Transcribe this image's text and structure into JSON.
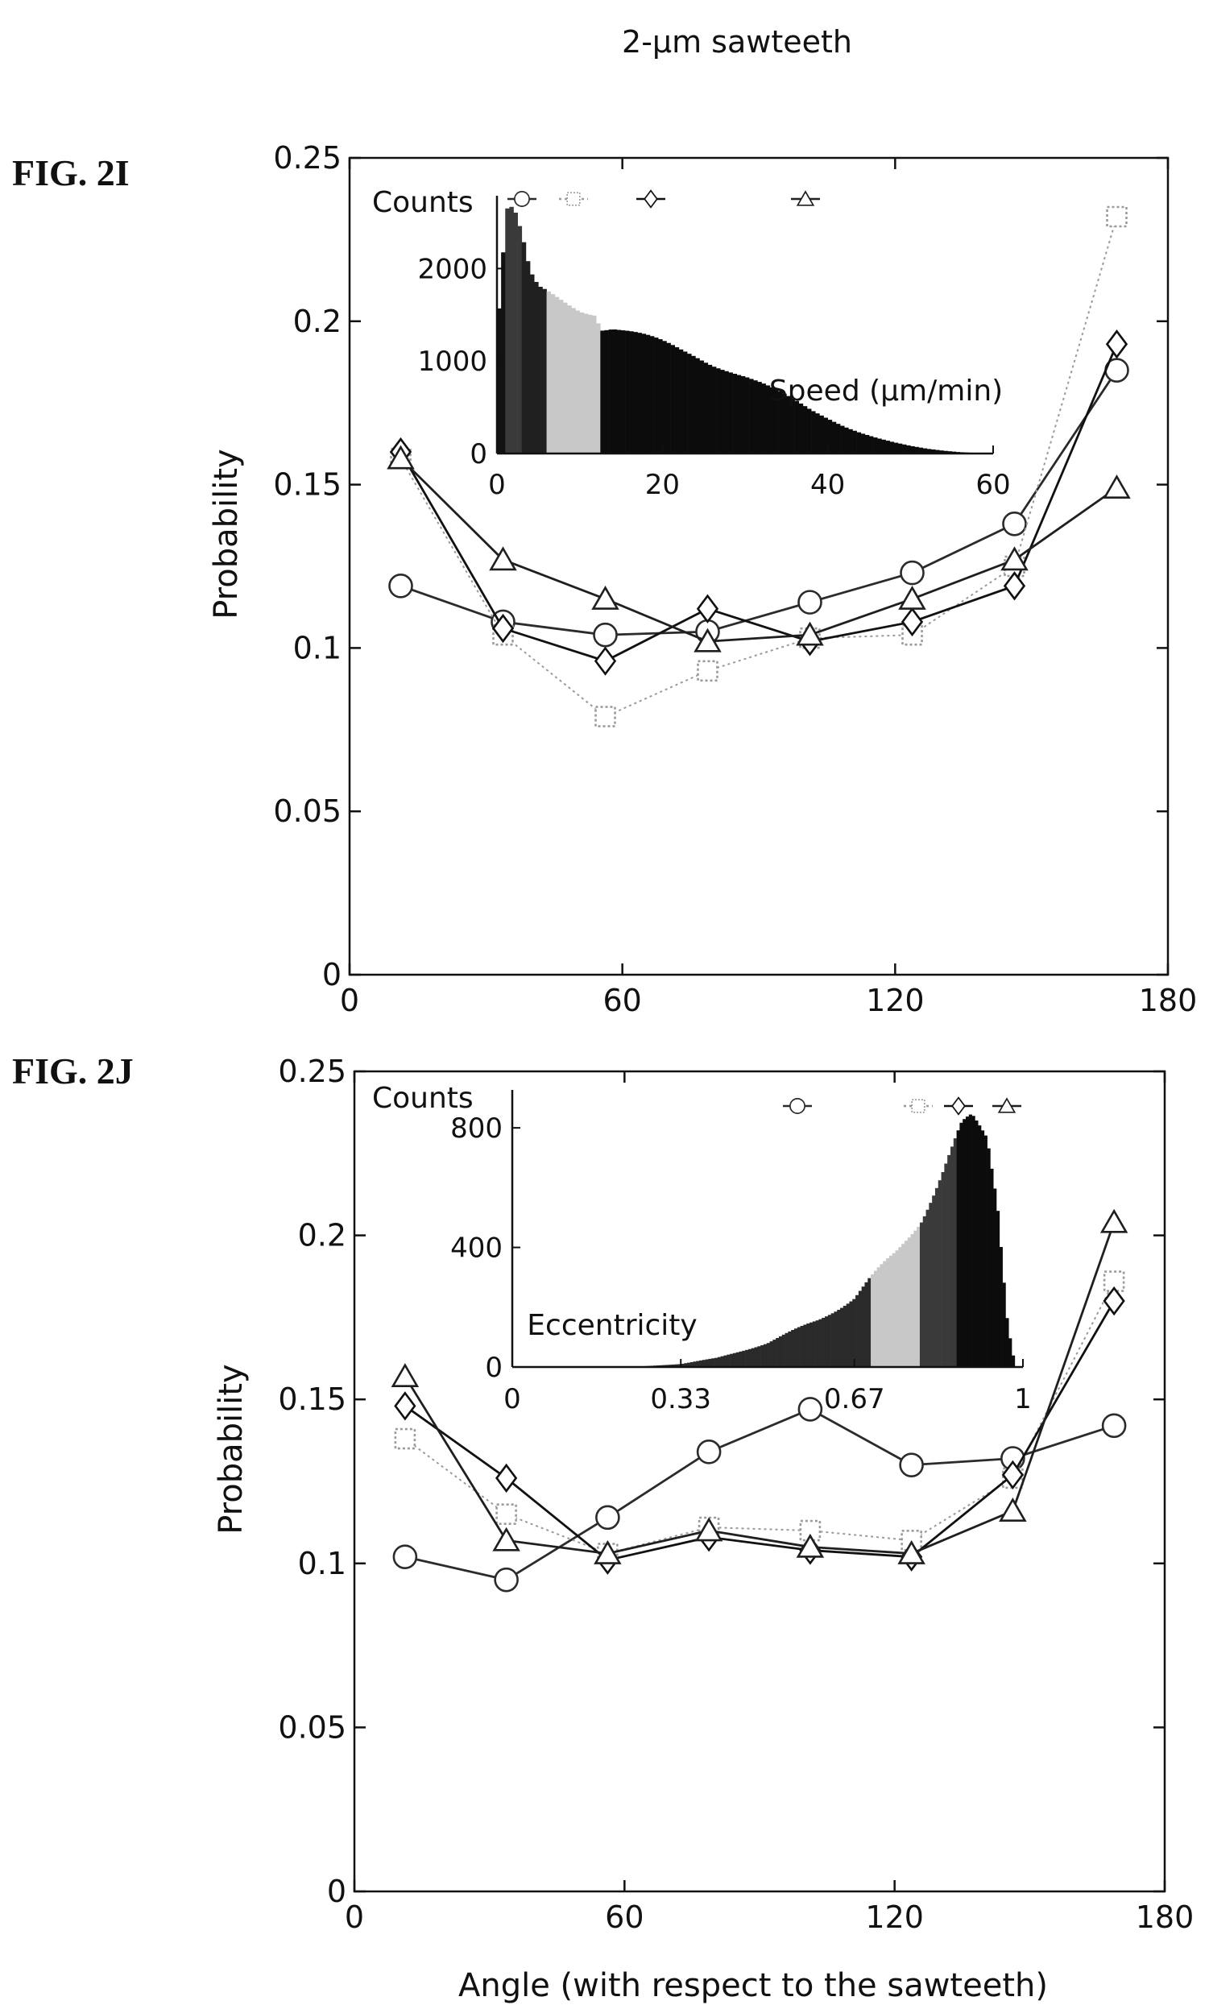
{
  "figure_title": "2-µm sawteeth",
  "shared_xlabel": "Angle (with respect to the sawteeth)",
  "series_styles": [
    {
      "marker": "circle",
      "color": "#2b2b2b",
      "dash": ""
    },
    {
      "marker": "square",
      "color": "#9a9a9a",
      "dash": "3,4"
    },
    {
      "marker": "diamond",
      "color": "#111111",
      "dash": ""
    },
    {
      "marker": "triangle",
      "color": "#1f1f1f",
      "dash": ""
    }
  ],
  "chart_data": [
    {
      "panel_label": "FIG. 2I",
      "type": "line",
      "ylabel": "Probability",
      "xlim": [
        0,
        180
      ],
      "ylim": [
        0,
        0.25
      ],
      "xticks": [
        0,
        60,
        120,
        180
      ],
      "yticks": [
        0,
        0.05,
        0.1,
        0.15,
        0.2,
        0.25
      ],
      "x": [
        11.25,
        33.75,
        56.25,
        78.75,
        101.25,
        123.75,
        146.25,
        168.75
      ],
      "series": [
        {
          "values": [
            0.119,
            0.108,
            0.104,
            0.105,
            0.114,
            0.123,
            0.138,
            0.185
          ]
        },
        {
          "values": [
            0.158,
            0.104,
            0.079,
            0.093,
            0.103,
            0.104,
            0.125,
            0.232
          ]
        },
        {
          "values": [
            0.16,
            0.106,
            0.096,
            0.112,
            0.102,
            0.108,
            0.119,
            0.193
          ]
        },
        {
          "values": [
            0.158,
            0.127,
            0.115,
            0.102,
            0.104,
            0.115,
            0.127,
            0.149
          ]
        }
      ],
      "inset": {
        "type": "bar",
        "ylabel": "Counts",
        "xlabel": "Speed (µm/min)",
        "xlim": [
          0,
          60
        ],
        "ylim": [
          0,
          2700
        ],
        "xticks": [
          0,
          20,
          40,
          60
        ],
        "yticks": [
          0,
          1000,
          2000
        ],
        "bin_width": 0.5,
        "group_edges": [
          0,
          1,
          3,
          6,
          12.5,
          60
        ],
        "group_colors": [
          "#111111",
          "#3a3a3a",
          "#202020",
          "#c8c8c8",
          "#0c0c0c"
        ],
        "profile": [
          [
            0,
            1250
          ],
          [
            0.6,
            2000
          ],
          [
            1.2,
            2600
          ],
          [
            2,
            2600
          ],
          [
            3,
            2300
          ],
          [
            4,
            1900
          ],
          [
            5,
            1750
          ],
          [
            6,
            1720
          ],
          [
            8,
            1650
          ],
          [
            10,
            1580
          ],
          [
            12,
            1550
          ],
          [
            12.5,
            1380
          ],
          [
            14,
            1380
          ],
          [
            16,
            1320
          ],
          [
            18,
            1250
          ],
          [
            20,
            1180
          ],
          [
            22,
            1110
          ],
          [
            24,
            1050
          ],
          [
            26,
            980
          ],
          [
            28,
            920
          ],
          [
            30,
            850
          ],
          [
            32,
            760
          ],
          [
            34,
            660
          ],
          [
            36,
            560
          ],
          [
            38,
            460
          ],
          [
            40,
            380
          ],
          [
            42,
            300
          ],
          [
            44,
            230
          ],
          [
            46,
            170
          ],
          [
            48,
            120
          ],
          [
            50,
            80
          ],
          [
            52,
            50
          ],
          [
            54,
            30
          ],
          [
            56,
            15
          ],
          [
            58,
            6
          ],
          [
            60,
            0
          ]
        ]
      }
    },
    {
      "panel_label": "FIG. 2J",
      "type": "line",
      "ylabel": "Probability",
      "xlim": [
        0,
        180
      ],
      "ylim": [
        0,
        0.25
      ],
      "xticks": [
        0,
        60,
        120,
        180
      ],
      "yticks": [
        0,
        0.05,
        0.1,
        0.15,
        0.2,
        0.25
      ],
      "x": [
        11.25,
        33.75,
        56.25,
        78.75,
        101.25,
        123.75,
        146.25,
        168.75
      ],
      "series": [
        {
          "values": [
            0.102,
            0.095,
            0.114,
            0.134,
            0.147,
            0.13,
            0.132,
            0.142
          ]
        },
        {
          "values": [
            0.138,
            0.115,
            0.103,
            0.111,
            0.11,
            0.107,
            0.126,
            0.186
          ]
        },
        {
          "values": [
            0.148,
            0.126,
            0.101,
            0.108,
            0.104,
            0.102,
            0.127,
            0.18
          ]
        },
        {
          "values": [
            0.157,
            0.107,
            0.103,
            0.11,
            0.105,
            0.103,
            0.116,
            0.204
          ]
        }
      ],
      "inset": {
        "type": "bar",
        "ylabel": "Counts",
        "xlabel": "Eccentricity",
        "xlim": [
          0,
          1
        ],
        "ylim": [
          0,
          900
        ],
        "xticks": [
          0,
          0.33,
          0.67,
          1
        ],
        "xtick_labels": [
          "0",
          "0.33",
          "0.67",
          "1"
        ],
        "yticks": [
          0,
          400,
          800
        ],
        "bin_width": 0.006,
        "group_edges": [
          0,
          0.7,
          0.8,
          0.87,
          0.93,
          1.0
        ],
        "group_colors": [
          "#2a2a2a",
          "#c8c8c8",
          "#3a3a3a",
          "#0c0c0c",
          "#0c0c0c"
        ],
        "profile": [
          [
            0,
            0
          ],
          [
            0.25,
            2
          ],
          [
            0.33,
            10
          ],
          [
            0.4,
            30
          ],
          [
            0.5,
            80
          ],
          [
            0.6,
            160
          ],
          [
            0.67,
            230
          ],
          [
            0.7,
            290
          ],
          [
            0.75,
            380
          ],
          [
            0.8,
            500
          ],
          [
            0.84,
            640
          ],
          [
            0.88,
            790
          ],
          [
            0.9,
            820
          ],
          [
            0.93,
            770
          ],
          [
            0.95,
            560
          ],
          [
            0.97,
            150
          ],
          [
            0.985,
            0
          ],
          [
            1,
            0
          ]
        ]
      }
    }
  ]
}
